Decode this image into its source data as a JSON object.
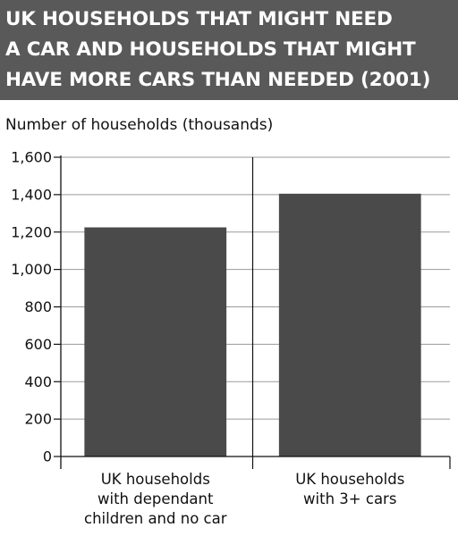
{
  "title": {
    "lines": [
      "UK HOUSEHOLDS THAT MIGHT NEED",
      "A CAR AND HOUSEHOLDS THAT MIGHT",
      "HAVE MORE CARS THAN NEEDED (2001)"
    ]
  },
  "colors": {
    "title_background": "#595959",
    "title_text": "#ffffff",
    "bar": "#4a4a4a",
    "grid": "#9a9a9a",
    "axis": "#111111"
  },
  "chart_data": {
    "type": "bar",
    "title": "UK HOUSEHOLDS THAT MIGHT NEED A CAR AND HOUSEHOLDS THAT MIGHT HAVE MORE CARS THAN NEEDED (2001)",
    "ylabel": "Number of households (thousands)",
    "xlabel": "",
    "categories": [
      [
        "UK households",
        "with dependant",
        "children and no car"
      ],
      [
        "UK households",
        "with 3+ cars"
      ]
    ],
    "values": [
      1225,
      1405
    ],
    "ylim": [
      0,
      1600
    ],
    "yticks": [
      0,
      200,
      400,
      600,
      800,
      1000,
      1200,
      1400,
      1600
    ],
    "ytick_labels": [
      "0",
      "200",
      "400",
      "600",
      "800",
      "1,000",
      "1,200",
      "1,400",
      "1,600"
    ],
    "grid": true,
    "legend": "none"
  }
}
